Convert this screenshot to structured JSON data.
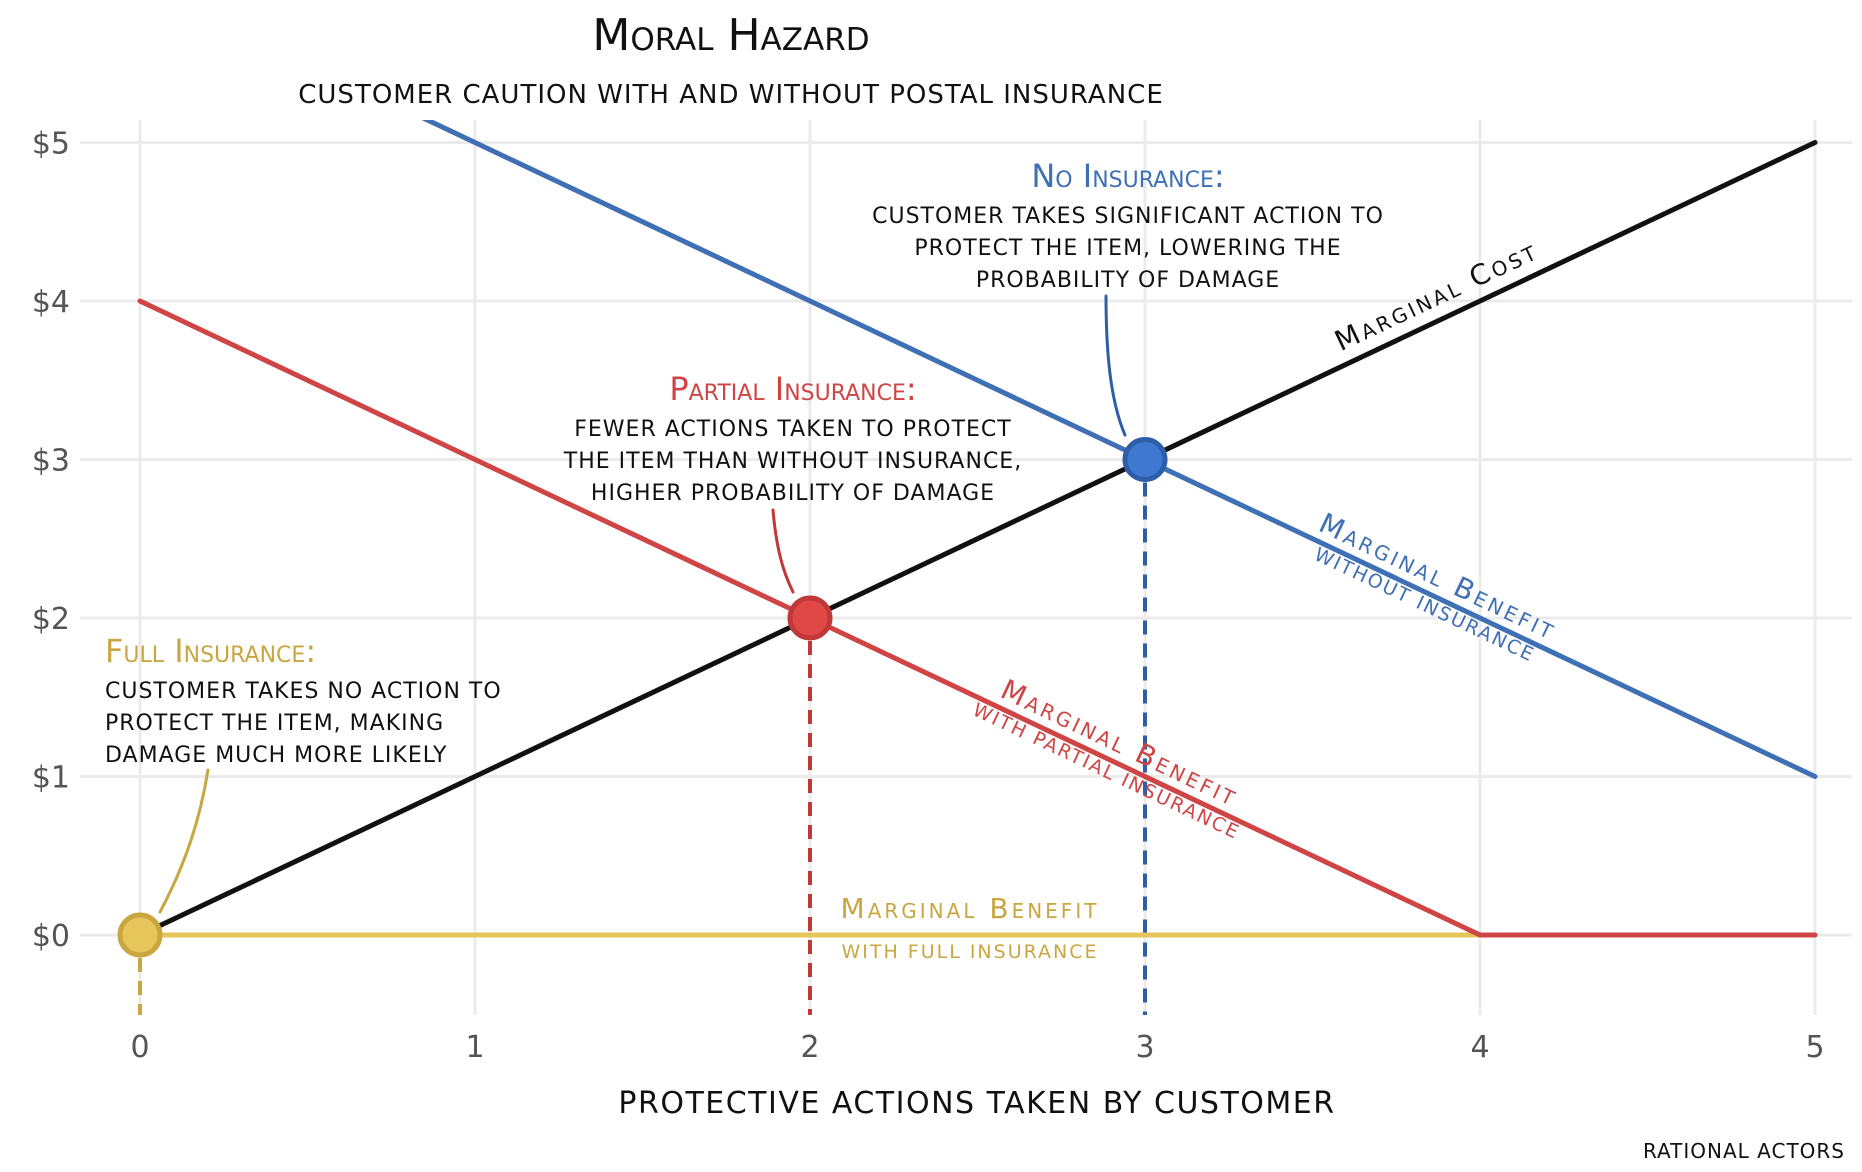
{
  "chart_data": {
    "type": "line",
    "title": "Moral Hazard",
    "subtitle": "CUSTOMER CAUTION WITH AND WITHOUT POSTAL INSURANCE",
    "xlabel": "PROTECTIVE ACTIONS TAKEN BY CUSTOMER",
    "ylabel": "",
    "caption": "RATIONAL ACTORS",
    "xlim": [
      0,
      5
    ],
    "ylim": [
      0,
      5
    ],
    "x_ticks": [
      "0",
      "1",
      "2",
      "3",
      "4",
      "5"
    ],
    "y_ticks": [
      "$0",
      "$1",
      "$2",
      "$3",
      "$4",
      "$5"
    ],
    "grid": true,
    "series": [
      {
        "key": "mc",
        "color": "#111111",
        "x": [
          0,
          5
        ],
        "y": [
          0,
          5
        ],
        "label": "Marginal Cost",
        "sublabel": ""
      },
      {
        "key": "mb_none",
        "color": "#3f6fb5",
        "x": [
          0,
          5
        ],
        "y": [
          6,
          1
        ],
        "label": "Marginal Benefit",
        "sublabel": "WITHOUT INSURANCE"
      },
      {
        "key": "mb_partial",
        "color": "#cf4444",
        "x": [
          0,
          4,
          5
        ],
        "y": [
          4,
          0,
          0
        ],
        "label": "Marginal Benefit",
        "sublabel": "WITH PARTIAL INSURANCE"
      },
      {
        "key": "mb_full",
        "color": "#e6c55a",
        "x": [
          0,
          5
        ],
        "y": [
          0,
          0
        ],
        "label": "Marginal Benefit",
        "sublabel": "WITH FULL INSURANCE"
      }
    ],
    "equilibria": [
      {
        "key": "full",
        "x": 0,
        "y": 0,
        "color": "#e6c55a",
        "stroke": "#c9a640",
        "title": "Full Insurance:",
        "title_color": "#c9a640",
        "lines": [
          "CUSTOMER TAKES NO ACTION TO",
          "PROTECT THE ITEM, MAKING",
          "DAMAGE MUCH MORE LIKELY"
        ]
      },
      {
        "key": "partial",
        "x": 2,
        "y": 2,
        "color": "#e04848",
        "stroke": "#c03838",
        "title": "Partial Insurance:",
        "title_color": "#cf4444",
        "lines": [
          "FEWER ACTIONS TAKEN TO PROTECT",
          "THE ITEM THAN WITHOUT INSURANCE,",
          "HIGHER PROBABILITY OF DAMAGE"
        ]
      },
      {
        "key": "none",
        "x": 3,
        "y": 3,
        "color": "#3f78d0",
        "stroke": "#2f5ea8",
        "title": "No Insurance:",
        "title_color": "#3f6fb5",
        "lines": [
          "CUSTOMER TAKES SIGNIFICANT ACTION TO",
          "PROTECT THE ITEM, LOWERING THE",
          "PROBABILITY OF DAMAGE"
        ]
      }
    ]
  }
}
